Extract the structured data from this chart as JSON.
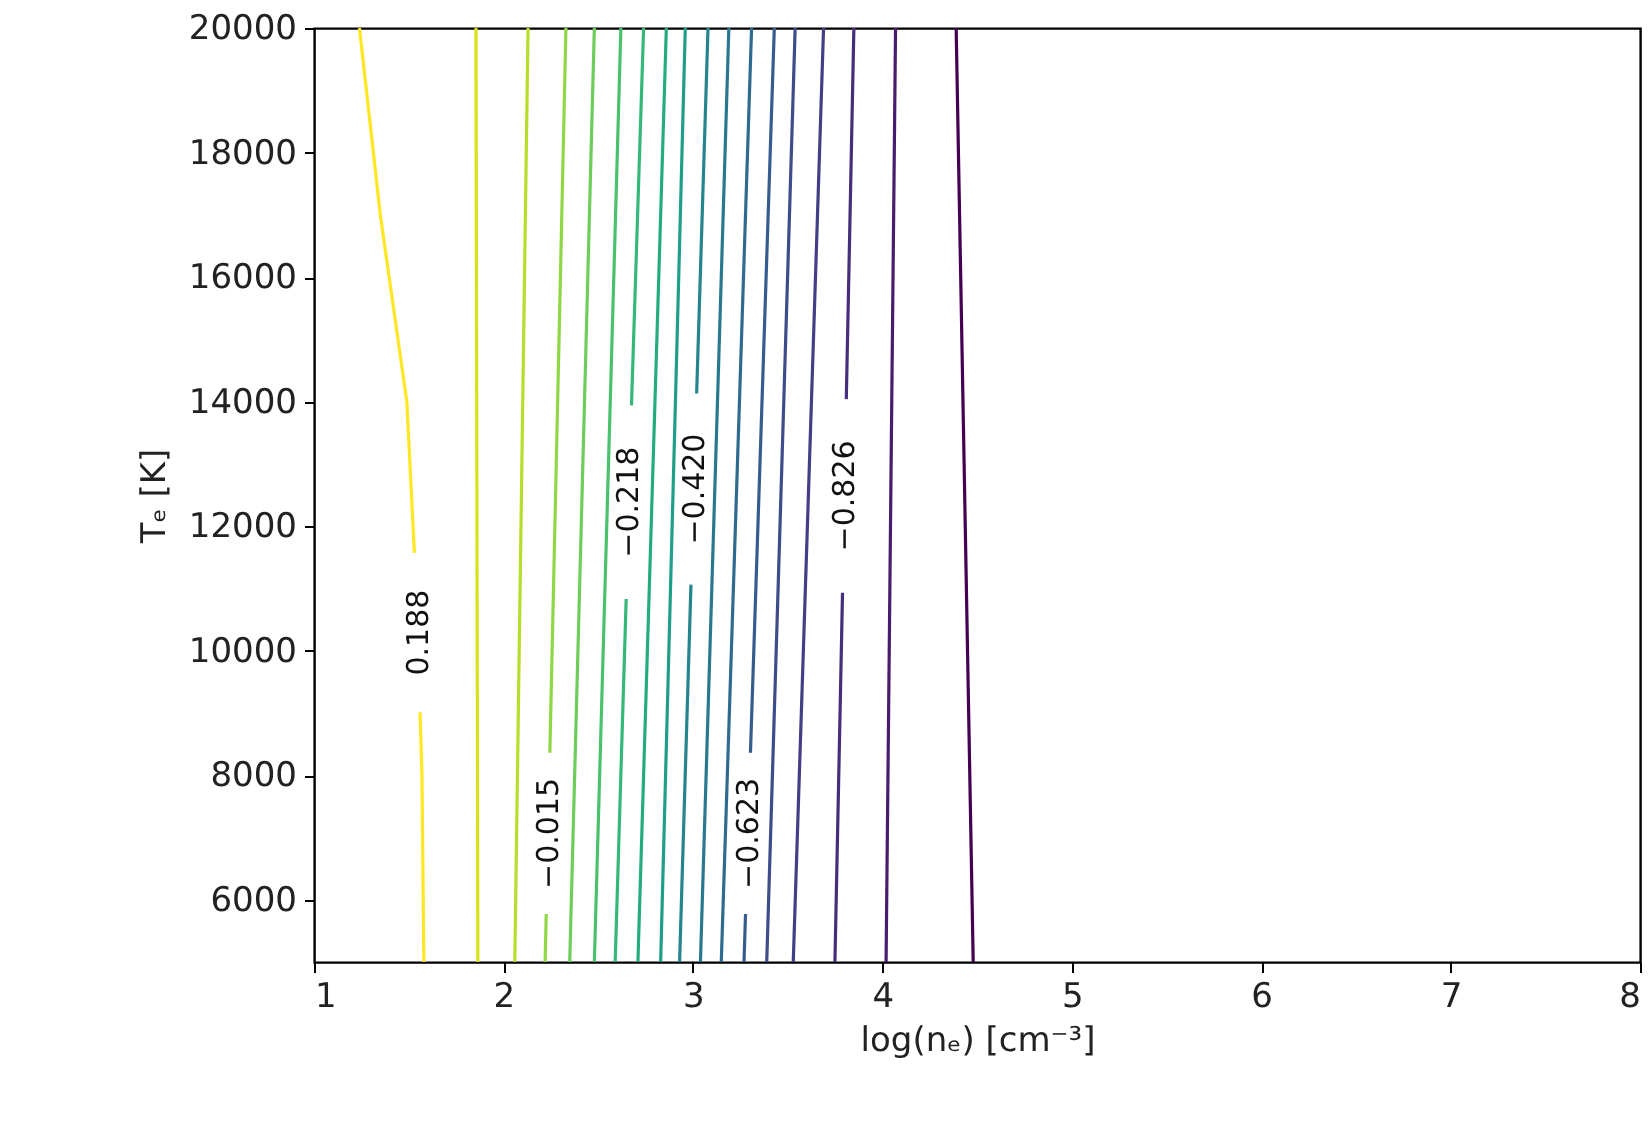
{
  "chart_data": {
    "type": "line",
    "xlabel": "log(nₑ) [cm⁻³]",
    "ylabel": "Tₑ [K]",
    "xlim": [
      1,
      8
    ],
    "ylim": [
      5000,
      20000
    ],
    "xticks": [
      1,
      2,
      3,
      4,
      5,
      6,
      7,
      8
    ],
    "yticks": [
      6000,
      8000,
      10000,
      12000,
      14000,
      16000,
      18000,
      20000
    ],
    "grid": false,
    "line_style": "solid",
    "series": [
      {
        "name": "0.188",
        "color": "#fde725",
        "x": [
          1.58,
          1.57,
          1.56,
          1.55,
          1.53,
          1.49,
          1.35,
          1.24
        ],
        "values": [
          5000,
          8000,
          9010,
          null,
          11570,
          14000,
          17000,
          20000
        ]
      },
      {
        "color": "#d8e219",
        "x": [
          1.865,
          1.855
        ],
        "values": [
          5000,
          20000
        ]
      },
      {
        "color": "#b5de2b",
        "x": [
          2.06,
          2.13
        ],
        "values": [
          5000,
          20000
        ]
      },
      {
        "name": "−0.015",
        "color": "#8fd744",
        "x": [
          2.22,
          2.226,
          2.235,
          2.245,
          2.33
        ],
        "values": [
          5000,
          5770,
          null,
          8360,
          20000
        ]
      },
      {
        "color": "#6ccd5a",
        "x": [
          2.35,
          2.48
        ],
        "values": [
          5000,
          20000
        ]
      },
      {
        "color": "#4ac16d",
        "x": [
          2.48,
          2.62
        ],
        "values": [
          5000,
          20000
        ]
      },
      {
        "name": "−0.218",
        "color": "#35b779",
        "x": [
          2.59,
          2.648,
          2.66,
          2.676,
          2.74
        ],
        "values": [
          5000,
          10830,
          null,
          13940,
          20000
        ]
      },
      {
        "color": "#25ab82",
        "x": [
          2.71,
          2.86
        ],
        "values": [
          5000,
          20000
        ]
      },
      {
        "color": "#1f9e89",
        "x": [
          2.83,
          2.96
        ],
        "values": [
          5000,
          20000
        ]
      },
      {
        "name": "−0.420",
        "color": "#25858e",
        "x": [
          2.93,
          2.99,
          3.006,
          3.02,
          3.08
        ],
        "values": [
          5000,
          11060,
          null,
          14130,
          20000
        ]
      },
      {
        "color": "#2a788e",
        "x": [
          3.04,
          3.19
        ],
        "values": [
          5000,
          20000
        ]
      },
      {
        "color": "#306a8e",
        "x": [
          3.15,
          3.31
        ],
        "values": [
          5000,
          20000
        ]
      },
      {
        "name": "−0.623",
        "color": "#365c8d",
        "x": [
          3.27,
          3.278,
          3.29,
          3.304,
          3.43
        ],
        "values": [
          5000,
          5770,
          null,
          8360,
          20000
        ]
      },
      {
        "color": "#3e4c8a",
        "x": [
          3.39,
          3.54
        ],
        "values": [
          5000,
          20000
        ]
      },
      {
        "color": "#433e85",
        "x": [
          3.53,
          3.69
        ],
        "values": [
          5000,
          20000
        ]
      },
      {
        "name": "−0.826",
        "color": "#472d7b",
        "x": [
          3.75,
          3.79,
          3.8,
          3.81,
          3.85
        ],
        "values": [
          5000,
          10930,
          null,
          14040,
          20000
        ]
      },
      {
        "color": "#481b6d",
        "x": [
          4.02,
          4.07
        ],
        "values": [
          5000,
          20000
        ]
      },
      {
        "color": "#440154",
        "x": [
          4.48,
          4.39
        ],
        "values": [
          5000,
          20000
        ]
      }
    ]
  }
}
